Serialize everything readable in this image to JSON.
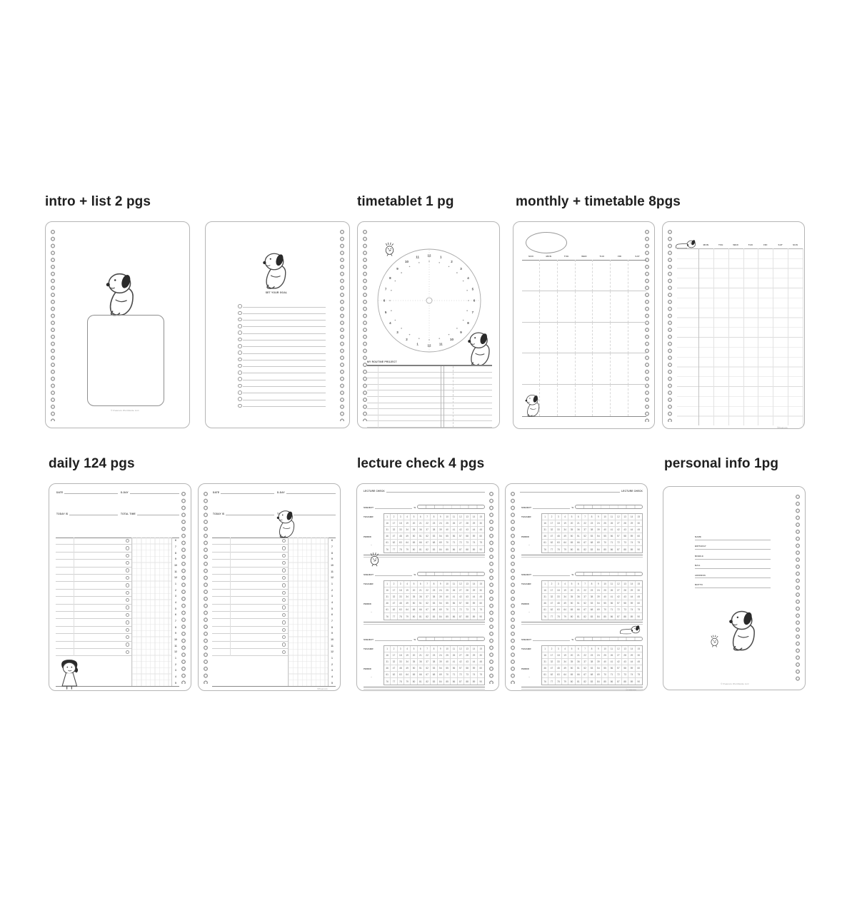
{
  "sections": [
    {
      "id": "intro",
      "title": "intro + list 2 pgs"
    },
    {
      "id": "timetablet",
      "title": "timetablet 1 pg"
    },
    {
      "id": "monthly",
      "title": "monthly + timetable 8pgs"
    },
    {
      "id": "daily",
      "title": "daily 124 pgs"
    },
    {
      "id": "lecture",
      "title": "lecture check 4 pgs"
    },
    {
      "id": "personal",
      "title": "personal info 1pg"
    }
  ],
  "intro_page": {
    "copyright": "© Peanuts Worldwide LLC"
  },
  "list_page": {
    "goal_label": "SET YOUR GOAL",
    "row_count": 16
  },
  "timetablet_page": {
    "routine_label": "MY ROUTINE PROJECT",
    "routine_rows": 10,
    "clock_numbers": [
      "12",
      "1",
      "2",
      "3",
      "4",
      "5",
      "6",
      "7",
      "8",
      "9",
      "10",
      "11",
      "12",
      "1",
      "2",
      "3",
      "4",
      "5",
      "6",
      "7",
      "8",
      "9",
      "10",
      "11"
    ]
  },
  "monthly_page": {
    "day_headers": [
      "SUN",
      "MON",
      "TUE",
      "WED",
      "THU",
      "FRI",
      "SAT"
    ],
    "week_rows": 5
  },
  "timetable_page": {
    "day_headers": [
      "MON",
      "TUE",
      "WED",
      "THU",
      "FRI",
      "SAT",
      "SUN"
    ],
    "copyright": "©Peanuts"
  },
  "daily_page": {
    "date_label": "DATE",
    "dday_label": "D-DAY",
    "today_label": "TODAY IS",
    "total_label": "TOTAL TIME",
    "todo_rows": 16,
    "hours": [
      "6",
      "7",
      "8",
      "9",
      "10",
      "11",
      "12",
      "1",
      "2",
      "3",
      "4",
      "5",
      "6",
      "7",
      "8",
      "9",
      "10",
      "11",
      "12",
      "1",
      "2",
      "3",
      "4",
      "5"
    ],
    "copyright": "©Peanuts"
  },
  "lecture_page": {
    "title": "LECTURE CHECK",
    "subject_label": "SUBJECT",
    "percent_label": "%",
    "teacher_label": "TEACHER",
    "period_label": "PERIOD",
    "range_mark": "~",
    "blocks_per_page": 3,
    "grid_numbers": [
      1,
      2,
      3,
      4,
      5,
      6,
      7,
      8,
      9,
      10,
      11,
      12,
      13,
      14,
      15,
      16,
      17,
      18,
      19,
      20,
      21,
      22,
      23,
      24,
      25,
      26,
      27,
      28,
      29,
      30,
      31,
      32,
      33,
      34,
      35,
      36,
      37,
      38,
      39,
      40,
      41,
      42,
      43,
      44,
      45,
      46,
      47,
      48,
      49,
      50,
      51,
      52,
      53,
      54,
      55,
      56,
      57,
      58,
      59,
      60,
      61,
      62,
      63,
      64,
      65,
      66,
      67,
      68,
      69,
      70,
      71,
      72,
      73,
      74,
      75,
      76,
      77,
      78,
      79,
      80,
      81,
      82,
      83,
      84,
      85,
      86,
      87,
      88,
      89,
      90
    ],
    "copyright": "©Peanuts"
  },
  "personal_page": {
    "fields": [
      "NAME",
      "BIRTHDAY",
      "MOBILE",
      "MAIL",
      "ADDRESS",
      "MOTTO"
    ],
    "copyright": "© Peanuts Worldwide LLC"
  }
}
